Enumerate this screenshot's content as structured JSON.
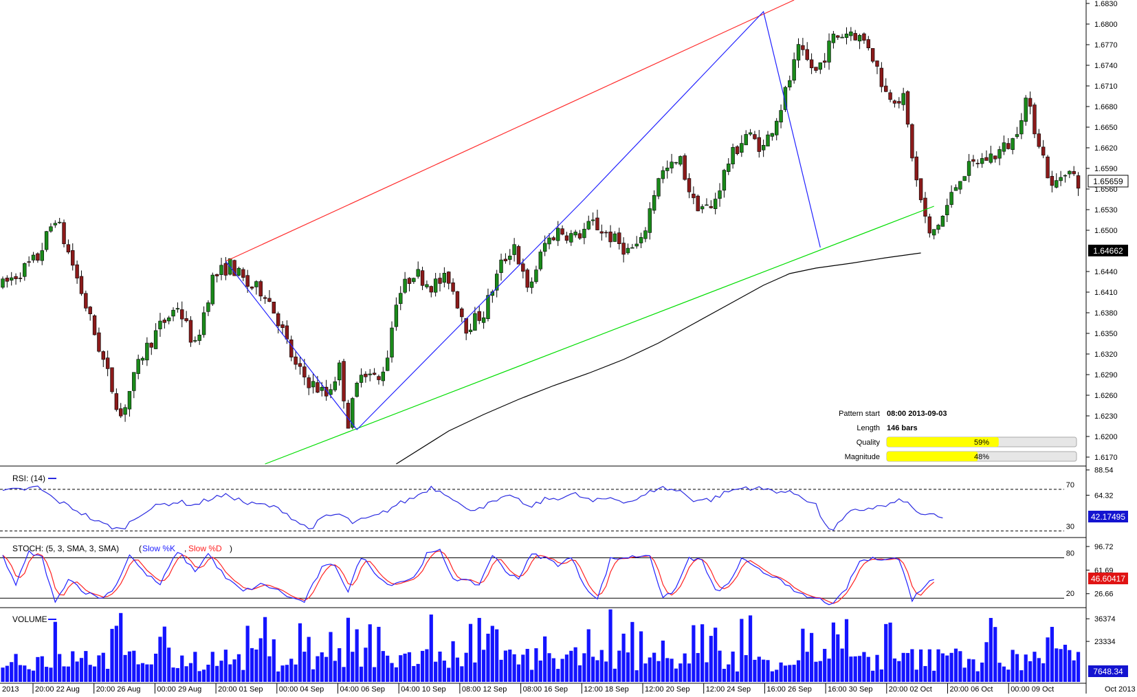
{
  "colors": {
    "bull": "#1a8a1a",
    "bear": "#8b1a1a",
    "channel_top": "#ff2a2a",
    "channel_bottom": "#00dd00",
    "zigzag": "#2020ff",
    "ma": "#000000",
    "rsi": "#2a2ae0",
    "stoch_k": "#2020ff",
    "stoch_d": "#ff2020",
    "volume": "#1414ff",
    "quality_fill": "#ffff00",
    "price_badge": "#000000",
    "value_badge_blue": "#1414d0",
    "value_badge_red": "#e01414"
  },
  "info_panel": {
    "pattern_start_label": "Pattern start",
    "pattern_start_value": "08:00 2013-09-03",
    "length_label": "Length",
    "length_value": "146 bars",
    "quality_label": "Quality",
    "quality_value": "59%",
    "quality_fraction": 0.59,
    "magnitude_label": "Magnitude",
    "magnitude_value": "48%",
    "magnitude_fraction": 0.48
  },
  "chart_data": [
    {
      "type": "candlestick",
      "panel": "price",
      "y_ticks": [
        "1.6830",
        "1.6800",
        "1.6770",
        "1.6740",
        "1.6710",
        "1.6680",
        "1.6650",
        "1.6620",
        "1.6590",
        "1.6560",
        "1.6530",
        "1.6500",
        "1.6440",
        "1.6410",
        "1.6380",
        "1.6350",
        "1.6320",
        "1.6290",
        "1.6260",
        "1.6230",
        "1.6200",
        "1.6170"
      ],
      "ylim": [
        1.6159,
        1.6835
      ],
      "current_price": "1.65659",
      "ma_last": "1.64662",
      "x_labels": [
        "2013",
        "20:00 22 Aug",
        "20:00 26 Aug",
        "00:00 29 Aug",
        "20:00 01 Sep",
        "00:00 04 Sep",
        "04:00 06 Sep",
        "04:00 10 Sep",
        "08:00 12 Sep",
        "08:00 16 Sep",
        "12:00 18 Sep",
        "12:00 20 Sep",
        "12:00 24 Sep",
        "16:00 26 Sep",
        "16:00 30 Sep",
        "20:00 02 Oct",
        "20:00 06 Oct",
        "00:00 09 Oct",
        "Oct 2013"
      ],
      "anchors": [
        [
          0,
          1.642
        ],
        [
          8,
          1.646
        ],
        [
          12,
          1.652
        ],
        [
          16,
          1.645
        ],
        [
          22,
          1.633
        ],
        [
          27,
          1.623
        ],
        [
          32,
          1.632
        ],
        [
          36,
          1.636
        ],
        [
          40,
          1.639
        ],
        [
          44,
          1.633
        ],
        [
          48,
          1.643
        ],
        [
          52,
          1.645
        ],
        [
          56,
          1.642
        ],
        [
          60,
          1.641
        ],
        [
          63,
          1.637
        ],
        [
          67,
          1.63
        ],
        [
          70,
          1.628
        ],
        [
          74,
          1.626
        ],
        [
          77,
          1.63
        ],
        [
          79,
          1.622
        ],
        [
          82,
          1.63
        ],
        [
          86,
          1.628
        ],
        [
          88,
          1.632
        ],
        [
          90,
          1.64
        ],
        [
          94,
          1.644
        ],
        [
          98,
          1.642
        ],
        [
          102,
          1.643
        ],
        [
          106,
          1.636
        ],
        [
          110,
          1.638
        ],
        [
          114,
          1.645
        ],
        [
          117,
          1.648
        ],
        [
          120,
          1.641
        ],
        [
          124,
          1.648
        ],
        [
          127,
          1.65
        ],
        [
          131,
          1.649
        ],
        [
          135,
          1.651
        ],
        [
          139,
          1.649
        ],
        [
          143,
          1.647
        ],
        [
          146,
          1.648
        ],
        [
          150,
          1.658
        ],
        [
          155,
          1.66
        ],
        [
          158,
          1.654
        ],
        [
          162,
          1.653
        ],
        [
          166,
          1.66
        ],
        [
          170,
          1.664
        ],
        [
          174,
          1.662
        ],
        [
          178,
          1.668
        ],
        [
          182,
          1.676
        ],
        [
          186,
          1.673
        ],
        [
          190,
          1.678
        ],
        [
          194,
          1.679
        ],
        [
          198,
          1.677
        ],
        [
          202,
          1.67
        ],
        [
          206,
          1.669
        ],
        [
          209,
          1.657
        ],
        [
          212,
          1.649
        ],
        [
          215,
          1.652
        ],
        [
          219,
          1.658
        ],
        [
          223,
          1.66
        ],
        [
          227,
          1.661
        ],
        [
          231,
          1.663
        ],
        [
          234,
          1.669
        ],
        [
          237,
          1.663
        ],
        [
          240,
          1.656
        ],
        [
          243,
          1.659
        ],
        [
          246,
          1.657
        ]
      ],
      "zigzag": [
        [
          51,
          1.6455
        ],
        [
          81,
          1.621
        ],
        [
          133,
          1.6545
        ],
        [
          174,
          1.6818
        ],
        [
          187,
          1.6475
        ]
      ],
      "channel_top": [
        [
          51,
          1.6455
        ],
        [
          181,
          1.6835
        ]
      ],
      "channel_bottom": [
        [
          60,
          1.616
        ],
        [
          213,
          1.6535
        ]
      ],
      "ma": [
        [
          90,
          1.616
        ],
        [
          102,
          1.6208
        ],
        [
          110,
          1.6232
        ],
        [
          118,
          1.6254
        ],
        [
          126,
          1.6274
        ],
        [
          134,
          1.6292
        ],
        [
          142,
          1.6312
        ],
        [
          150,
          1.6336
        ],
        [
          158,
          1.6364
        ],
        [
          166,
          1.6392
        ],
        [
          174,
          1.642
        ],
        [
          180,
          1.6437
        ],
        [
          186,
          1.6445
        ],
        [
          194,
          1.6452
        ],
        [
          202,
          1.646
        ],
        [
          210,
          1.6467
        ]
      ]
    },
    {
      "type": "line",
      "panel": "rsi",
      "label": "RSI: (14)",
      "levels": [
        "70",
        "30"
      ],
      "y_ticks": [
        "88.54",
        "64.32"
      ],
      "ylim": [
        25,
        91
      ],
      "current_value": "42.17495",
      "anchors": [
        [
          0,
          68
        ],
        [
          5,
          70
        ],
        [
          8,
          72
        ],
        [
          12,
          60
        ],
        [
          16,
          52
        ],
        [
          22,
          38
        ],
        [
          27,
          31
        ],
        [
          32,
          48
        ],
        [
          36,
          55
        ],
        [
          40,
          58
        ],
        [
          44,
          55
        ],
        [
          48,
          62
        ],
        [
          52,
          64
        ],
        [
          56,
          56
        ],
        [
          60,
          55
        ],
        [
          64,
          50
        ],
        [
          67,
          40
        ],
        [
          70,
          32
        ],
        [
          74,
          44
        ],
        [
          77,
          46
        ],
        [
          80,
          38
        ],
        [
          82,
          40
        ],
        [
          86,
          45
        ],
        [
          90,
          55
        ],
        [
          94,
          62
        ],
        [
          98,
          72
        ],
        [
          102,
          65
        ],
        [
          106,
          50
        ],
        [
          110,
          54
        ],
        [
          114,
          60
        ],
        [
          117,
          64
        ],
        [
          120,
          52
        ],
        [
          124,
          60
        ],
        [
          127,
          62
        ],
        [
          131,
          65
        ],
        [
          135,
          58
        ],
        [
          139,
          62
        ],
        [
          143,
          58
        ],
        [
          146,
          62
        ],
        [
          150,
          72
        ],
        [
          155,
          68
        ],
        [
          158,
          60
        ],
        [
          162,
          60
        ],
        [
          166,
          68
        ],
        [
          170,
          72
        ],
        [
          174,
          70
        ],
        [
          178,
          68
        ],
        [
          182,
          65
        ],
        [
          186,
          55
        ],
        [
          188,
          35
        ],
        [
          190,
          32
        ],
        [
          194,
          48
        ],
        [
          198,
          52
        ],
        [
          202,
          54
        ],
        [
          206,
          60
        ],
        [
          209,
          48
        ],
        [
          212,
          45
        ],
        [
          215,
          42
        ]
      ]
    },
    {
      "type": "line",
      "panel": "stochastic",
      "label": "STOCH: (5, 3, SMA, 3, SMA)",
      "legend": [
        "Slow %K",
        "Slow %D"
      ],
      "levels": [
        "80",
        "20"
      ],
      "y_ticks": [
        "96.72",
        "61.69",
        "26.66"
      ],
      "ylim": [
        8,
        108
      ],
      "current_value": "46.60417",
      "anchors": [
        [
          0,
          82
        ],
        [
          3,
          40
        ],
        [
          6,
          88
        ],
        [
          9,
          80
        ],
        [
          12,
          12
        ],
        [
          15,
          50
        ],
        [
          19,
          28
        ],
        [
          23,
          20
        ],
        [
          26,
          40
        ],
        [
          29,
          85
        ],
        [
          32,
          60
        ],
        [
          36,
          40
        ],
        [
          40,
          90
        ],
        [
          44,
          60
        ],
        [
          47,
          86
        ],
        [
          51,
          50
        ],
        [
          55,
          30
        ],
        [
          59,
          40
        ],
        [
          62,
          35
        ],
        [
          66,
          20
        ],
        [
          69,
          15
        ],
        [
          73,
          65
        ],
        [
          76,
          70
        ],
        [
          79,
          30
        ],
        [
          82,
          82
        ],
        [
          85,
          60
        ],
        [
          88,
          40
        ],
        [
          91,
          45
        ],
        [
          94,
          50
        ],
        [
          97,
          85
        ],
        [
          100,
          90
        ],
        [
          103,
          50
        ],
        [
          106,
          45
        ],
        [
          109,
          40
        ],
        [
          112,
          85
        ],
        [
          115,
          60
        ],
        [
          118,
          50
        ],
        [
          121,
          85
        ],
        [
          124,
          80
        ],
        [
          127,
          70
        ],
        [
          130,
          80
        ],
        [
          133,
          40
        ],
        [
          136,
          18
        ],
        [
          139,
          78
        ],
        [
          142,
          80
        ],
        [
          145,
          82
        ],
        [
          148,
          85
        ],
        [
          151,
          18
        ],
        [
          154,
          35
        ],
        [
          157,
          80
        ],
        [
          160,
          75
        ],
        [
          163,
          30
        ],
        [
          166,
          40
        ],
        [
          169,
          78
        ],
        [
          172,
          65
        ],
        [
          175,
          55
        ],
        [
          178,
          50
        ],
        [
          181,
          28
        ],
        [
          184,
          22
        ],
        [
          187,
          18
        ],
        [
          190,
          10
        ],
        [
          193,
          35
        ],
        [
          196,
          75
        ],
        [
          199,
          78
        ],
        [
          202,
          80
        ],
        [
          205,
          78
        ],
        [
          208,
          18
        ],
        [
          211,
          40
        ],
        [
          213,
          48
        ]
      ]
    },
    {
      "type": "bar",
      "panel": "volume",
      "label": "VOLUME",
      "y_ticks": [
        "36374",
        "23334"
      ],
      "ylim": [
        0,
        42000
      ],
      "current_value": "7648.34"
    }
  ]
}
